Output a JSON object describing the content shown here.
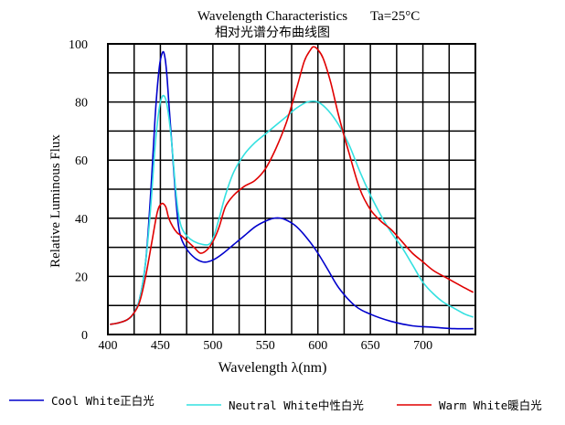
{
  "chart_data": {
    "type": "line",
    "title": "Wavelength Characteristics",
    "title_condition": "Ta=25°C",
    "subtitle": "相对光谱分布曲线图",
    "xlabel": "Wavelength λ(nm)",
    "ylabel": "Relative Luminous Flux",
    "xlim": [
      400,
      750
    ],
    "ylim": [
      0,
      100
    ],
    "x_ticks": [
      400,
      450,
      500,
      550,
      600,
      650,
      700
    ],
    "y_ticks": [
      0,
      20,
      40,
      60,
      80,
      100
    ],
    "grid": true,
    "legend_position": "bottom",
    "series": [
      {
        "name": "Cool White正白光",
        "color": "#0000cc",
        "x": [
          402,
          410,
          418,
          424,
          430,
          436,
          441,
          445,
          449,
          452,
          454,
          456,
          458,
          461,
          464,
          467,
          470,
          474,
          478,
          484,
          490,
          495,
          502,
          510,
          520,
          530,
          540,
          550,
          558,
          565,
          572,
          580,
          590,
          600,
          610,
          620,
          635,
          650,
          670,
          690,
          710,
          730,
          748
        ],
        "y": [
          3.5,
          4,
          5,
          7,
          12,
          25,
          50,
          75,
          92,
          97,
          96,
          90,
          80,
          65,
          50,
          38,
          33,
          30,
          28,
          26,
          25,
          25,
          26,
          28,
          31,
          34,
          37,
          39,
          40,
          40,
          39,
          37,
          33,
          28,
          22,
          16,
          10,
          7,
          4.5,
          3,
          2.5,
          2,
          2
        ]
      },
      {
        "name": "Neutral White中性白光",
        "color": "#33e0e0",
        "x": [
          402,
          410,
          418,
          424,
          430,
          436,
          441,
          445,
          449,
          452,
          455,
          458,
          461,
          464,
          467,
          470,
          475,
          482,
          490,
          496,
          500,
          506,
          512,
          520,
          530,
          540,
          550,
          560,
          570,
          580,
          590,
          600,
          610,
          620,
          630,
          640,
          650,
          660,
          670,
          680,
          690,
          700,
          710,
          720,
          730,
          740,
          748
        ],
        "y": [
          3.5,
          4,
          5,
          7,
          12,
          25,
          45,
          65,
          78,
          82,
          81,
          75,
          65,
          52,
          42,
          37,
          34,
          32,
          31,
          31,
          33,
          40,
          48,
          56,
          62,
          66,
          69,
          72,
          75,
          78,
          80,
          80,
          77,
          72,
          65,
          56,
          48,
          41,
          35,
          30,
          24,
          18,
          14,
          11,
          9,
          7,
          6
        ]
      },
      {
        "name": "Warm White暖白光",
        "color": "#e00000",
        "x": [
          402,
          410,
          418,
          424,
          430,
          436,
          442,
          447,
          451,
          455,
          458,
          462,
          466,
          470,
          476,
          482,
          488,
          494,
          500,
          506,
          512,
          520,
          530,
          540,
          550,
          560,
          570,
          580,
          587,
          593,
          596,
          600,
          605,
          612,
          620,
          630,
          640,
          650,
          660,
          670,
          680,
          690,
          700,
          710,
          720,
          730,
          740,
          748
        ],
        "y": [
          3.5,
          4,
          5,
          7,
          11,
          20,
          32,
          42,
          45,
          44,
          40,
          37,
          35,
          34,
          32,
          30,
          28,
          29,
          32,
          37,
          44,
          48,
          51,
          53,
          57,
          64,
          73,
          85,
          94,
          98,
          99,
          98,
          95,
          87,
          75,
          62,
          50,
          43,
          39,
          36,
          32,
          28,
          25,
          22,
          20,
          18,
          16,
          14.5
        ]
      }
    ]
  }
}
